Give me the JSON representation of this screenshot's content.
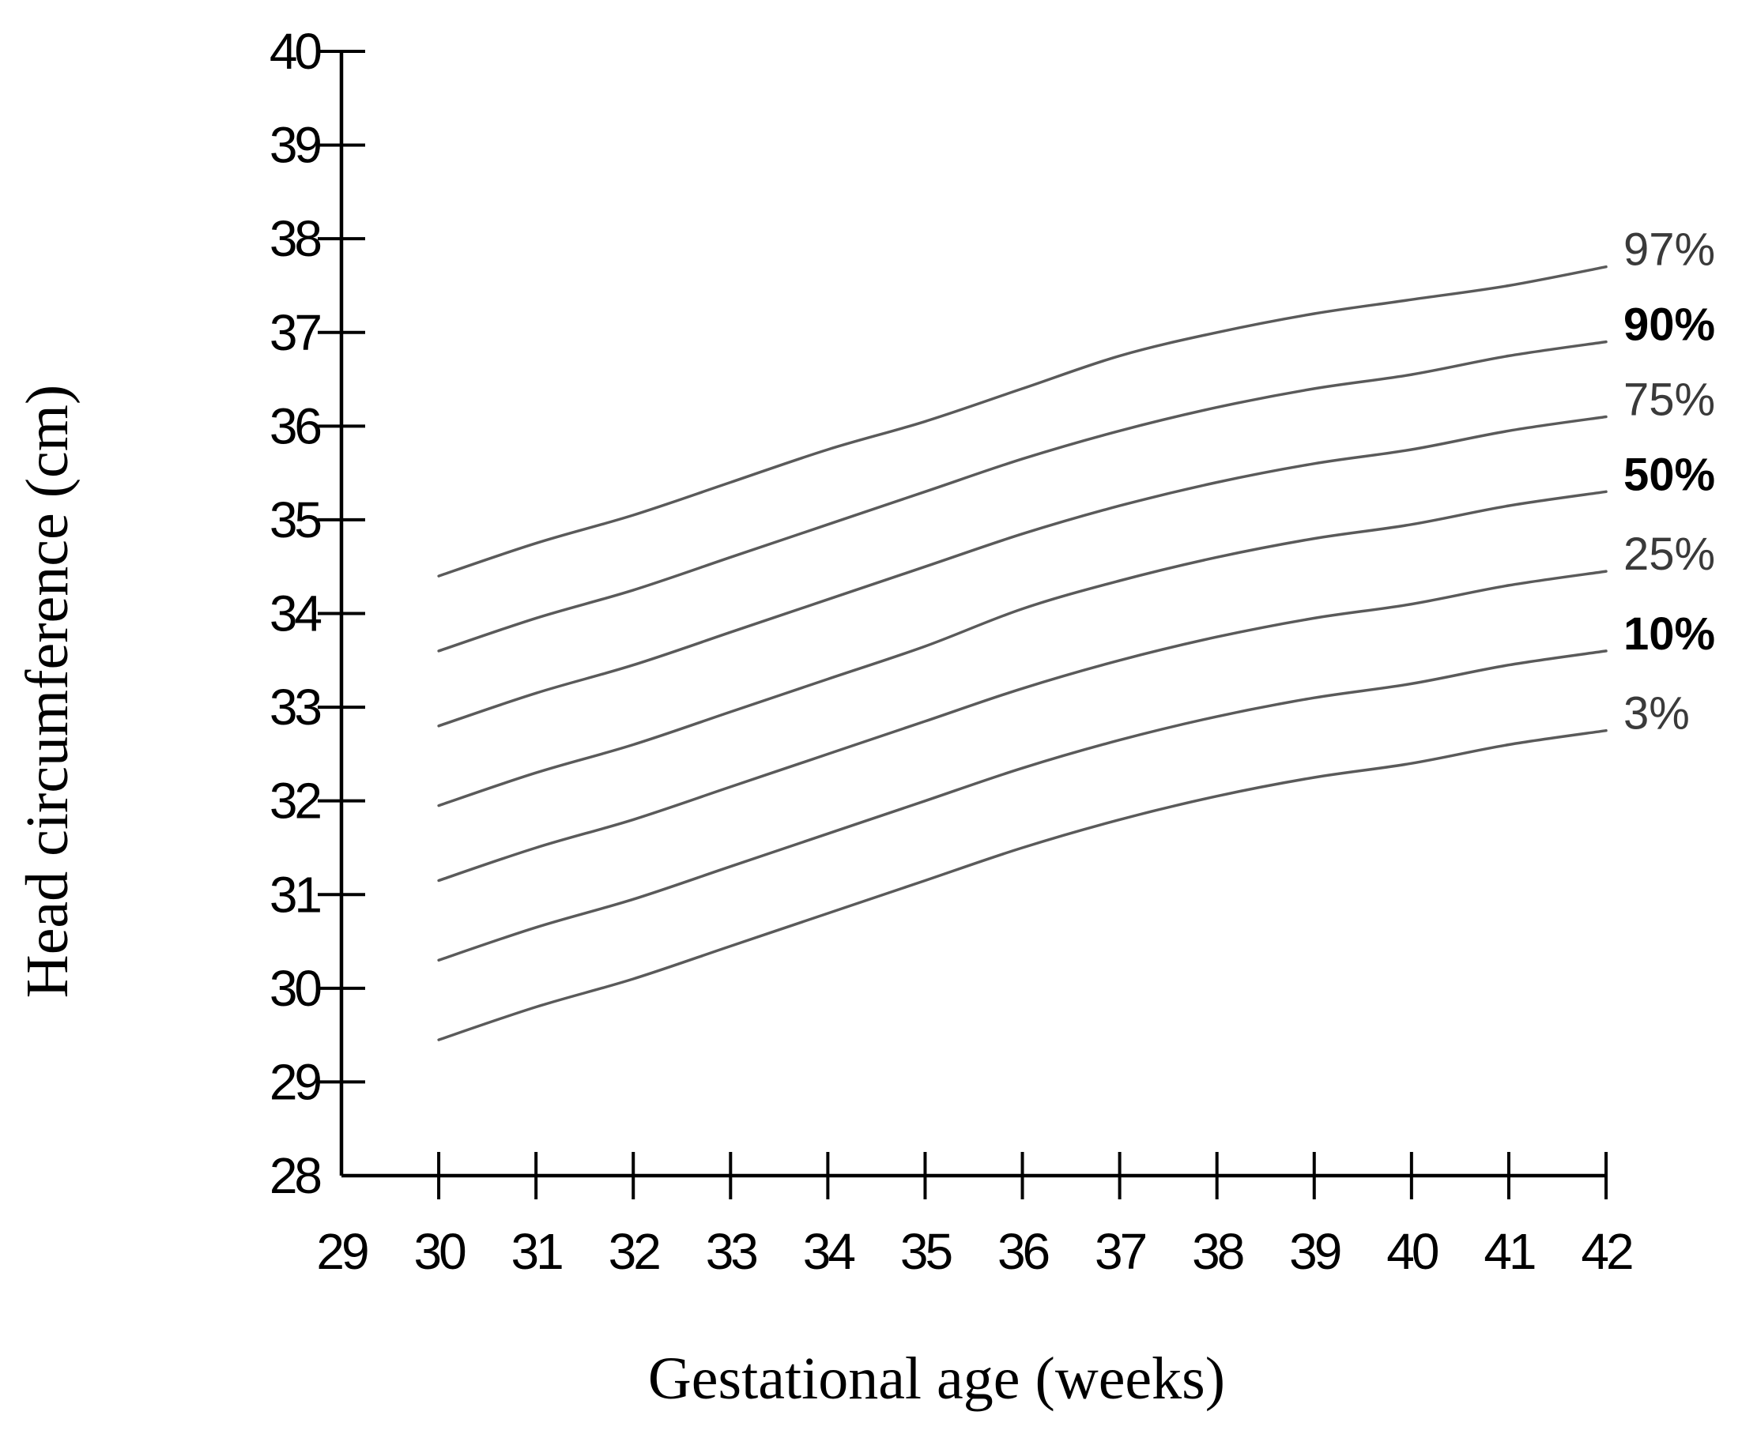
{
  "chart_data": {
    "type": "line",
    "title": "",
    "xlabel": "Gestational age (weeks)",
    "ylabel": "Head circumference (cm)",
    "xlim": [
      29,
      42
    ],
    "ylim": [
      28,
      40
    ],
    "x_ticks": [
      29,
      30,
      31,
      32,
      33,
      34,
      35,
      36,
      37,
      38,
      39,
      40,
      41,
      42
    ],
    "y_ticks": [
      28,
      29,
      30,
      31,
      32,
      33,
      34,
      35,
      36,
      37,
      38,
      39,
      40
    ],
    "grid": false,
    "line_color": "#5a5a5a",
    "x": [
      30,
      31,
      32,
      33,
      34,
      35,
      36,
      37,
      38,
      39,
      40,
      41,
      42
    ],
    "series": [
      {
        "name": "97%",
        "bold": false,
        "values": [
          34.4,
          34.75,
          35.05,
          35.4,
          35.75,
          36.05,
          36.4,
          36.75,
          37.0,
          37.2,
          37.35,
          37.5,
          37.7
        ]
      },
      {
        "name": "90%",
        "bold": true,
        "values": [
          33.6,
          33.95,
          34.25,
          34.6,
          34.95,
          35.3,
          35.65,
          35.95,
          36.2,
          36.4,
          36.55,
          36.75,
          36.9
        ]
      },
      {
        "name": "75%",
        "bold": false,
        "values": [
          32.8,
          33.15,
          33.45,
          33.8,
          34.15,
          34.5,
          34.85,
          35.15,
          35.4,
          35.6,
          35.75,
          35.95,
          36.1
        ]
      },
      {
        "name": "50%",
        "bold": true,
        "values": [
          31.95,
          32.3,
          32.6,
          32.95,
          33.3,
          33.65,
          34.05,
          34.35,
          34.6,
          34.8,
          34.95,
          35.15,
          35.3
        ]
      },
      {
        "name": "25%",
        "bold": false,
        "values": [
          31.15,
          31.5,
          31.8,
          32.15,
          32.5,
          32.85,
          33.2,
          33.5,
          33.75,
          33.95,
          34.1,
          34.3,
          34.45
        ]
      },
      {
        "name": "10%",
        "bold": true,
        "values": [
          30.3,
          30.65,
          30.95,
          31.3,
          31.65,
          32.0,
          32.35,
          32.65,
          32.9,
          33.1,
          33.25,
          33.45,
          33.6
        ]
      },
      {
        "name": "3%",
        "bold": false,
        "values": [
          29.45,
          29.8,
          30.1,
          30.45,
          30.8,
          31.15,
          31.5,
          31.8,
          32.05,
          32.25,
          32.4,
          32.6,
          32.75
        ]
      }
    ]
  }
}
